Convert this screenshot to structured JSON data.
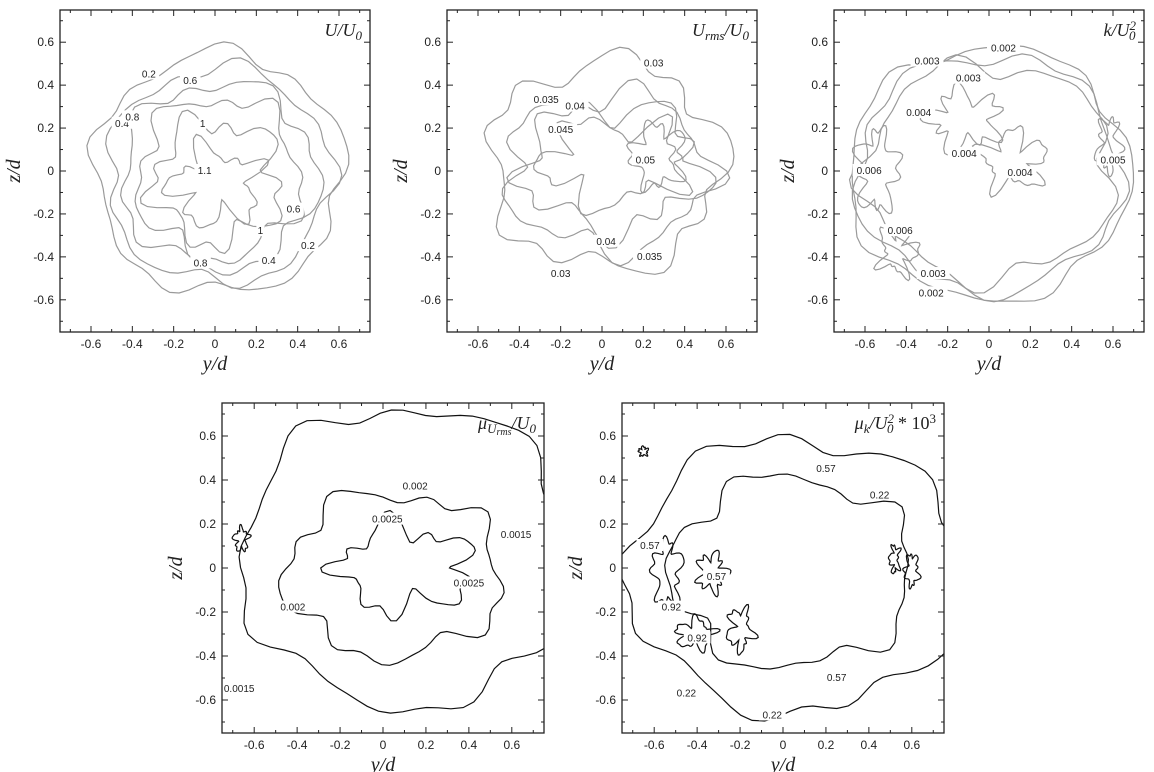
{
  "colors": {
    "background": "#ffffff",
    "axes": "#222222",
    "contour_light": "#9a9a9a",
    "contour_dark": "#111111"
  },
  "chart_data": [
    {
      "type": "contour",
      "id": "p1",
      "title_base": "U",
      "title_tail": "/U",
      "title_sub": "0",
      "title_sup": "",
      "title_extra": "",
      "xlabel": "y/d",
      "ylabel": "z/d",
      "xlim": [
        -0.75,
        0.75
      ],
      "ylim": [
        -0.75,
        0.75
      ],
      "xticks": [
        "-0.6",
        "-0.4",
        "-0.2",
        "0",
        "0.2",
        "0.4",
        "0.6"
      ],
      "yticks": [
        "-0.6",
        "-0.4",
        "-0.2",
        "0",
        "0.2",
        "0.4",
        "0.6"
      ],
      "line_color": "#9a9a9a",
      "contours": [
        {
          "level": "0.2",
          "rx": 0.6,
          "ry": 0.56,
          "cx": 0.02,
          "cy": -0.01,
          "wobble": 0.03
        },
        {
          "level": "0.4",
          "rx": 0.54,
          "ry": 0.5,
          "cx": 0.02,
          "cy": -0.02,
          "wobble": 0.03
        },
        {
          "level": "0.6",
          "rx": 0.47,
          "ry": 0.43,
          "cx": 0.02,
          "cy": -0.02,
          "wobble": 0.035
        },
        {
          "level": "0.8",
          "rx": 0.39,
          "ry": 0.37,
          "cx": 0.02,
          "cy": -0.03,
          "wobble": 0.04
        },
        {
          "level": "1",
          "rx": 0.3,
          "ry": 0.28,
          "cx": 0.01,
          "cy": -0.05,
          "wobble": 0.05
        },
        {
          "level": "1.1",
          "rx": 0.2,
          "ry": 0.16,
          "cx": 0.0,
          "cy": -0.07,
          "wobble": 0.05
        }
      ],
      "labels": [
        {
          "text": "0.2",
          "x": -0.32,
          "y": 0.45
        },
        {
          "text": "0.6",
          "x": -0.12,
          "y": 0.42
        },
        {
          "text": "0.4",
          "x": -0.45,
          "y": 0.22
        },
        {
          "text": "0.8",
          "x": -0.4,
          "y": 0.25
        },
        {
          "text": "1",
          "x": -0.06,
          "y": 0.22
        },
        {
          "text": "1.1",
          "x": -0.05,
          "y": 0.0
        },
        {
          "text": "1",
          "x": 0.22,
          "y": -0.28
        },
        {
          "text": "0.6",
          "x": 0.38,
          "y": -0.18
        },
        {
          "text": "0.2",
          "x": 0.45,
          "y": -0.35
        },
        {
          "text": "0.8",
          "x": -0.07,
          "y": -0.43
        },
        {
          "text": "0.4",
          "x": 0.26,
          "y": -0.42
        }
      ]
    },
    {
      "type": "contour",
      "id": "p2",
      "title_base": "U",
      "title_tail": "/U",
      "title_sub": "rms",
      "title_sub2": "0",
      "title_sup": "",
      "title_extra": "",
      "xlabel": "y/d",
      "ylabel": "z/d",
      "xlim": [
        -0.75,
        0.75
      ],
      "ylim": [
        -0.75,
        0.75
      ],
      "xticks": [
        "-0.6",
        "-0.4",
        "-0.2",
        "0",
        "0.2",
        "0.4",
        "0.6"
      ],
      "yticks": [
        "-0.6",
        "-0.4",
        "-0.2",
        "0",
        "0.2",
        "0.4",
        "0.6"
      ],
      "line_color": "#9a9a9a",
      "contours": [
        {
          "level": "0.03",
          "rx": 0.56,
          "ry": 0.48,
          "cx": 0.02,
          "cy": 0.03,
          "wobble": 0.05
        },
        {
          "level": "0.035",
          "rx": 0.49,
          "ry": 0.36,
          "cx": 0.03,
          "cy": 0.0,
          "wobble": 0.05
        },
        {
          "level": "0.04",
          "rx": 0.43,
          "ry": 0.28,
          "cx": 0.05,
          "cy": 0.02,
          "wobble": 0.06
        },
        {
          "level": "0.045",
          "rx": 0.33,
          "ry": 0.18,
          "cx": 0.05,
          "cy": 0.04,
          "wobble": 0.06
        },
        {
          "level": "0.05",
          "rx": 0.12,
          "ry": 0.14,
          "cx": 0.27,
          "cy": 0.07,
          "wobble": 0.03
        }
      ],
      "labels": [
        {
          "text": "0.03",
          "x": 0.25,
          "y": 0.5
        },
        {
          "text": "0.035",
          "x": -0.27,
          "y": 0.33
        },
        {
          "text": "0.04",
          "x": -0.13,
          "y": 0.3
        },
        {
          "text": "0.045",
          "x": -0.2,
          "y": 0.19
        },
        {
          "text": "0.05",
          "x": 0.21,
          "y": 0.05
        },
        {
          "text": "0.04",
          "x": 0.02,
          "y": -0.33
        },
        {
          "text": "0.035",
          "x": 0.23,
          "y": -0.4
        },
        {
          "text": "0.03",
          "x": -0.2,
          "y": -0.48
        }
      ]
    },
    {
      "type": "contour",
      "id": "p3",
      "title_base": "k",
      "title_tail": "/U",
      "title_sub": "0",
      "title_sup": "2",
      "title_extra": "",
      "xlabel": "y/d",
      "ylabel": "z/d",
      "xlim": [
        -0.75,
        0.75
      ],
      "ylim": [
        -0.75,
        0.75
      ],
      "xticks": [
        "-0.6",
        "-0.4",
        "-0.2",
        "0",
        "0.2",
        "0.4",
        "0.6"
      ],
      "yticks": [
        "-0.6",
        "-0.4",
        "-0.2",
        "0",
        "0.2",
        "0.4",
        "0.6"
      ],
      "line_color": "#9a9a9a",
      "contours": [
        {
          "level": "0.002",
          "rx": 0.68,
          "ry": 0.59,
          "cx": 0.0,
          "cy": -0.01,
          "wobble": 0.025
        },
        {
          "level": "0.003",
          "rx": 0.64,
          "ry": 0.55,
          "cx": 0.0,
          "cy": -0.01,
          "wobble": 0.03
        },
        {
          "level": "0.004",
          "rx": 0.6,
          "ry": 0.5,
          "cx": 0.0,
          "cy": 0.0,
          "wobble": 0.04
        },
        {
          "level": "0.004",
          "rx": 0.16,
          "ry": 0.12,
          "cx": -0.12,
          "cy": 0.24,
          "wobble": 0.04
        },
        {
          "level": "0.004",
          "rx": 0.14,
          "ry": 0.12,
          "cx": 0.12,
          "cy": 0.05,
          "wobble": 0.04
        },
        {
          "level": "0.006",
          "rx": 0.09,
          "ry": 0.18,
          "cx": -0.54,
          "cy": 0.0,
          "wobble": 0.03
        },
        {
          "level": "0.006",
          "rx": 0.08,
          "ry": 0.1,
          "cx": -0.44,
          "cy": -0.37,
          "wobble": 0.03
        },
        {
          "level": "0.005",
          "rx": 0.05,
          "ry": 0.12,
          "cx": 0.58,
          "cy": 0.12,
          "wobble": 0.02
        }
      ],
      "labels": [
        {
          "text": "0.002",
          "x": 0.07,
          "y": 0.57
        },
        {
          "text": "0.003",
          "x": -0.3,
          "y": 0.51
        },
        {
          "text": "0.003",
          "x": -0.1,
          "y": 0.43
        },
        {
          "text": "0.004",
          "x": -0.34,
          "y": 0.27
        },
        {
          "text": "0.004",
          "x": -0.12,
          "y": 0.08
        },
        {
          "text": "0.004",
          "x": 0.15,
          "y": -0.01
        },
        {
          "text": "0.006",
          "x": -0.58,
          "y": 0.0
        },
        {
          "text": "0.005",
          "x": 0.6,
          "y": 0.05
        },
        {
          "text": "0.006",
          "x": -0.43,
          "y": -0.28
        },
        {
          "text": "0.003",
          "x": -0.27,
          "y": -0.48
        },
        {
          "text": "0.002",
          "x": -0.28,
          "y": -0.57
        }
      ]
    },
    {
      "type": "contour",
      "id": "p4",
      "title_base": "μ",
      "title_tail": "/U",
      "title_sub": "U",
      "title_sub_sub": "rms",
      "title_sub2": "0",
      "title_sup": "",
      "title_extra": "",
      "xlabel": "y/d",
      "ylabel": "z/d",
      "xlim": [
        -0.75,
        0.75
      ],
      "ylim": [
        -0.75,
        0.75
      ],
      "xticks": [
        "-0.6",
        "-0.4",
        "-0.2",
        "0",
        "0.2",
        "0.4",
        "0.6"
      ],
      "yticks": [
        "-0.6",
        "-0.4",
        "-0.2",
        "0",
        "0.2",
        "0.4",
        "0.6"
      ],
      "line_color": "#111111",
      "contours": [
        {
          "level": "0.0015",
          "rx": 0.78,
          "ry": 0.68,
          "cx": 0.12,
          "cy": 0.05,
          "wobble": 0.04
        },
        {
          "level": "0.002",
          "rx": 0.5,
          "ry": 0.37,
          "cx": 0.05,
          "cy": -0.03,
          "wobble": 0.04
        },
        {
          "level": "0.0025",
          "rx": 0.3,
          "ry": 0.18,
          "cx": 0.1,
          "cy": 0.0,
          "wobble": 0.05
        },
        {
          "level": "0.0015",
          "rx": 0.03,
          "ry": 0.05,
          "cx": -0.66,
          "cy": 0.13,
          "wobble": 0.01
        }
      ],
      "labels": [
        {
          "text": "0.002",
          "x": 0.15,
          "y": 0.37
        },
        {
          "text": "0.0025",
          "x": 0.02,
          "y": 0.22
        },
        {
          "text": "0.0015",
          "x": 0.62,
          "y": 0.15
        },
        {
          "text": "0.0025",
          "x": 0.4,
          "y": -0.07
        },
        {
          "text": "0.002",
          "x": -0.42,
          "y": -0.18
        },
        {
          "text": "0.0015",
          "x": -0.67,
          "y": -0.55
        }
      ]
    },
    {
      "type": "contour",
      "id": "p5",
      "title_base": "μ",
      "title_tail": "/U",
      "title_sub": "k",
      "title_sub2": "0",
      "title_sup": "2",
      "title_extra": " * 10",
      "title_extra_sup": "3",
      "xlabel": "y/d",
      "ylabel": "z/d",
      "xlim": [
        -0.75,
        0.75
      ],
      "ylim": [
        -0.75,
        0.75
      ],
      "xticks": [
        "-0.6",
        "-0.4",
        "-0.2",
        "0",
        "0.2",
        "0.4",
        "0.6"
      ],
      "yticks": [
        "-0.6",
        "-0.4",
        "-0.2",
        "0",
        "0.2",
        "0.4",
        "0.6"
      ],
      "line_color": "#111111",
      "contours": [
        {
          "level": "0.22",
          "rx": 0.78,
          "ry": 0.62,
          "cx": 0.06,
          "cy": -0.03,
          "wobble": 0.04
        },
        {
          "level": "0.57",
          "rx": 0.56,
          "ry": 0.43,
          "cx": 0.04,
          "cy": -0.02,
          "wobble": 0.04
        },
        {
          "level": "0.92",
          "rx": 0.06,
          "ry": 0.14,
          "cx": -0.54,
          "cy": -0.02,
          "wobble": 0.02
        },
        {
          "level": "0.92",
          "rx": 0.08,
          "ry": 0.06,
          "cx": -0.41,
          "cy": -0.3,
          "wobble": 0.02
        },
        {
          "level": "0.57",
          "rx": 0.06,
          "ry": 0.08,
          "cx": -0.33,
          "cy": -0.02,
          "wobble": 0.02
        },
        {
          "level": "0.57",
          "rx": 0.05,
          "ry": 0.09,
          "cx": -0.2,
          "cy": -0.28,
          "wobble": 0.02
        },
        {
          "level": "0.57",
          "rx": 0.03,
          "ry": 0.07,
          "cx": 0.6,
          "cy": -0.01,
          "wobble": 0.01
        },
        {
          "level": "0.57",
          "rx": 0.02,
          "ry": 0.06,
          "cx": 0.52,
          "cy": 0.04,
          "wobble": 0.01
        },
        {
          "level": "0.57",
          "rx": 0.02,
          "ry": 0.02,
          "cx": -0.65,
          "cy": 0.53,
          "wobble": 0.005
        }
      ],
      "labels": [
        {
          "text": "0.57",
          "x": 0.2,
          "y": 0.45
        },
        {
          "text": "0.22",
          "x": 0.45,
          "y": 0.33
        },
        {
          "text": "0.57",
          "x": -0.62,
          "y": 0.1
        },
        {
          "text": "0.57",
          "x": -0.31,
          "y": -0.04
        },
        {
          "text": "0.92",
          "x": -0.52,
          "y": -0.18
        },
        {
          "text": "0.92",
          "x": -0.4,
          "y": -0.32
        },
        {
          "text": "0.57",
          "x": 0.25,
          "y": -0.5
        },
        {
          "text": "0.22",
          "x": -0.45,
          "y": -0.57
        },
        {
          "text": "0.22",
          "x": -0.05,
          "y": -0.67
        }
      ]
    }
  ]
}
